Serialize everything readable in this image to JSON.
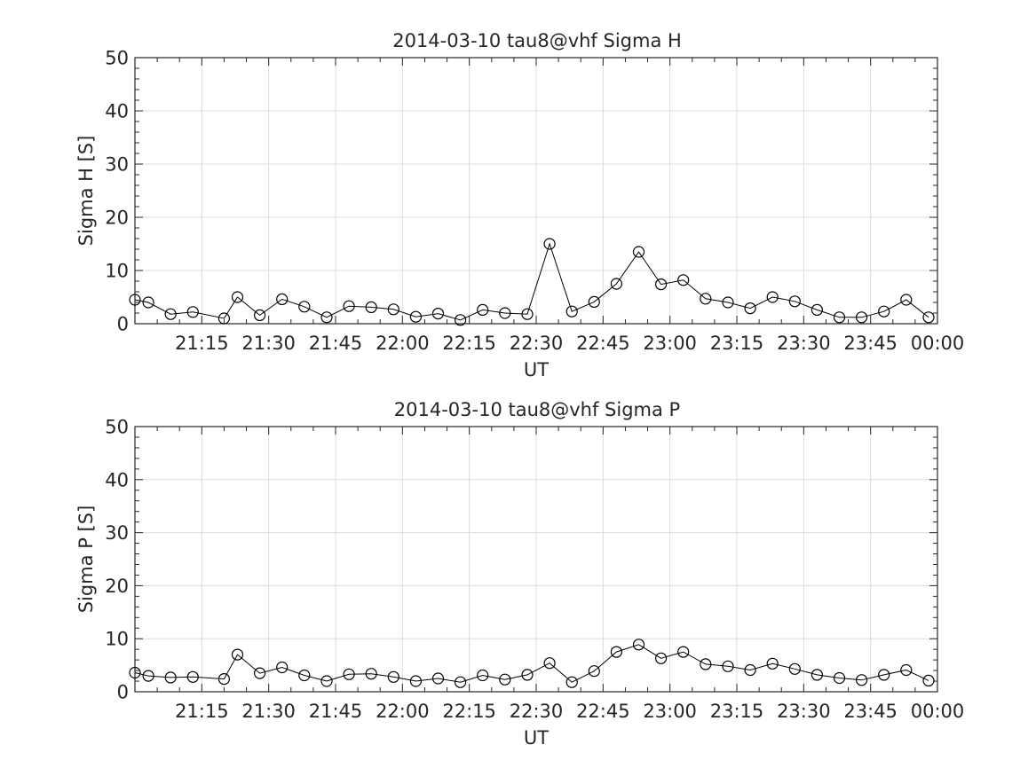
{
  "chart_data": [
    {
      "type": "line",
      "title": "2014-03-10  tau8@vhf Sigma H",
      "xlabel": "UT",
      "ylabel": "Sigma H [S]",
      "ylim": [
        0,
        50
      ],
      "yticks": [
        "0",
        "10",
        "20",
        "30",
        "40",
        "50"
      ],
      "xticks": [
        "21:15",
        "21:30",
        "21:45",
        "22:00",
        "22:15",
        "22:30",
        "22:45",
        "23:00",
        "23:15",
        "23:30",
        "23:45",
        "00:00"
      ],
      "grid": true,
      "marker": "circle",
      "series": [
        {
          "x": [
            "21:00",
            "21:03",
            "21:08",
            "21:13",
            "21:20",
            "21:23",
            "21:28",
            "21:33",
            "21:38",
            "21:43",
            "21:48",
            "21:53",
            "21:58",
            "22:03",
            "22:08",
            "22:13",
            "22:18",
            "22:23",
            "22:28",
            "22:33",
            "22:38",
            "22:43",
            "22:48",
            "22:53",
            "22:58",
            "23:03",
            "23:08",
            "23:13",
            "23:18",
            "23:23",
            "23:28",
            "23:33",
            "23:38",
            "23:43",
            "23:48",
            "23:53",
            "23:58"
          ],
          "values": [
            4.5,
            4.0,
            1.8,
            2.2,
            1.0,
            5.0,
            1.6,
            4.6,
            3.2,
            1.2,
            3.3,
            3.1,
            2.7,
            1.3,
            1.9,
            0.7,
            2.6,
            2.0,
            1.8,
            15.0,
            2.3,
            4.1,
            7.5,
            13.5,
            7.4,
            8.2,
            4.7,
            4.0,
            2.9,
            5.0,
            4.2,
            2.6,
            1.2,
            1.2,
            2.3,
            4.5,
            1.2
          ]
        }
      ]
    },
    {
      "type": "line",
      "title": "2014-03-10  tau8@vhf Sigma P",
      "xlabel": "UT",
      "ylabel": "Sigma P [S]",
      "ylim": [
        0,
        50
      ],
      "yticks": [
        "0",
        "10",
        "20",
        "30",
        "40",
        "50"
      ],
      "xticks": [
        "21:15",
        "21:30",
        "21:45",
        "22:00",
        "22:15",
        "22:30",
        "22:45",
        "23:00",
        "23:15",
        "23:30",
        "23:45",
        "00:00"
      ],
      "grid": true,
      "marker": "circle",
      "series": [
        {
          "x": [
            "21:00",
            "21:03",
            "21:08",
            "21:13",
            "21:20",
            "21:23",
            "21:28",
            "21:33",
            "21:38",
            "21:43",
            "21:48",
            "21:53",
            "21:58",
            "22:03",
            "22:08",
            "22:13",
            "22:18",
            "22:23",
            "22:28",
            "22:33",
            "22:38",
            "22:43",
            "22:48",
            "22:53",
            "22:58",
            "23:03",
            "23:08",
            "23:13",
            "23:18",
            "23:23",
            "23:28",
            "23:33",
            "23:38",
            "23:43",
            "23:48",
            "23:53",
            "23:58"
          ],
          "values": [
            3.6,
            3.0,
            2.7,
            2.8,
            2.4,
            7.0,
            3.5,
            4.6,
            3.1,
            2.0,
            3.3,
            3.4,
            2.8,
            2.0,
            2.5,
            1.8,
            3.1,
            2.3,
            3.2,
            5.4,
            1.8,
            3.9,
            7.5,
            8.9,
            6.3,
            7.5,
            5.2,
            4.8,
            4.1,
            5.3,
            4.3,
            3.2,
            2.6,
            2.2,
            3.2,
            4.1,
            2.1
          ]
        }
      ]
    }
  ]
}
